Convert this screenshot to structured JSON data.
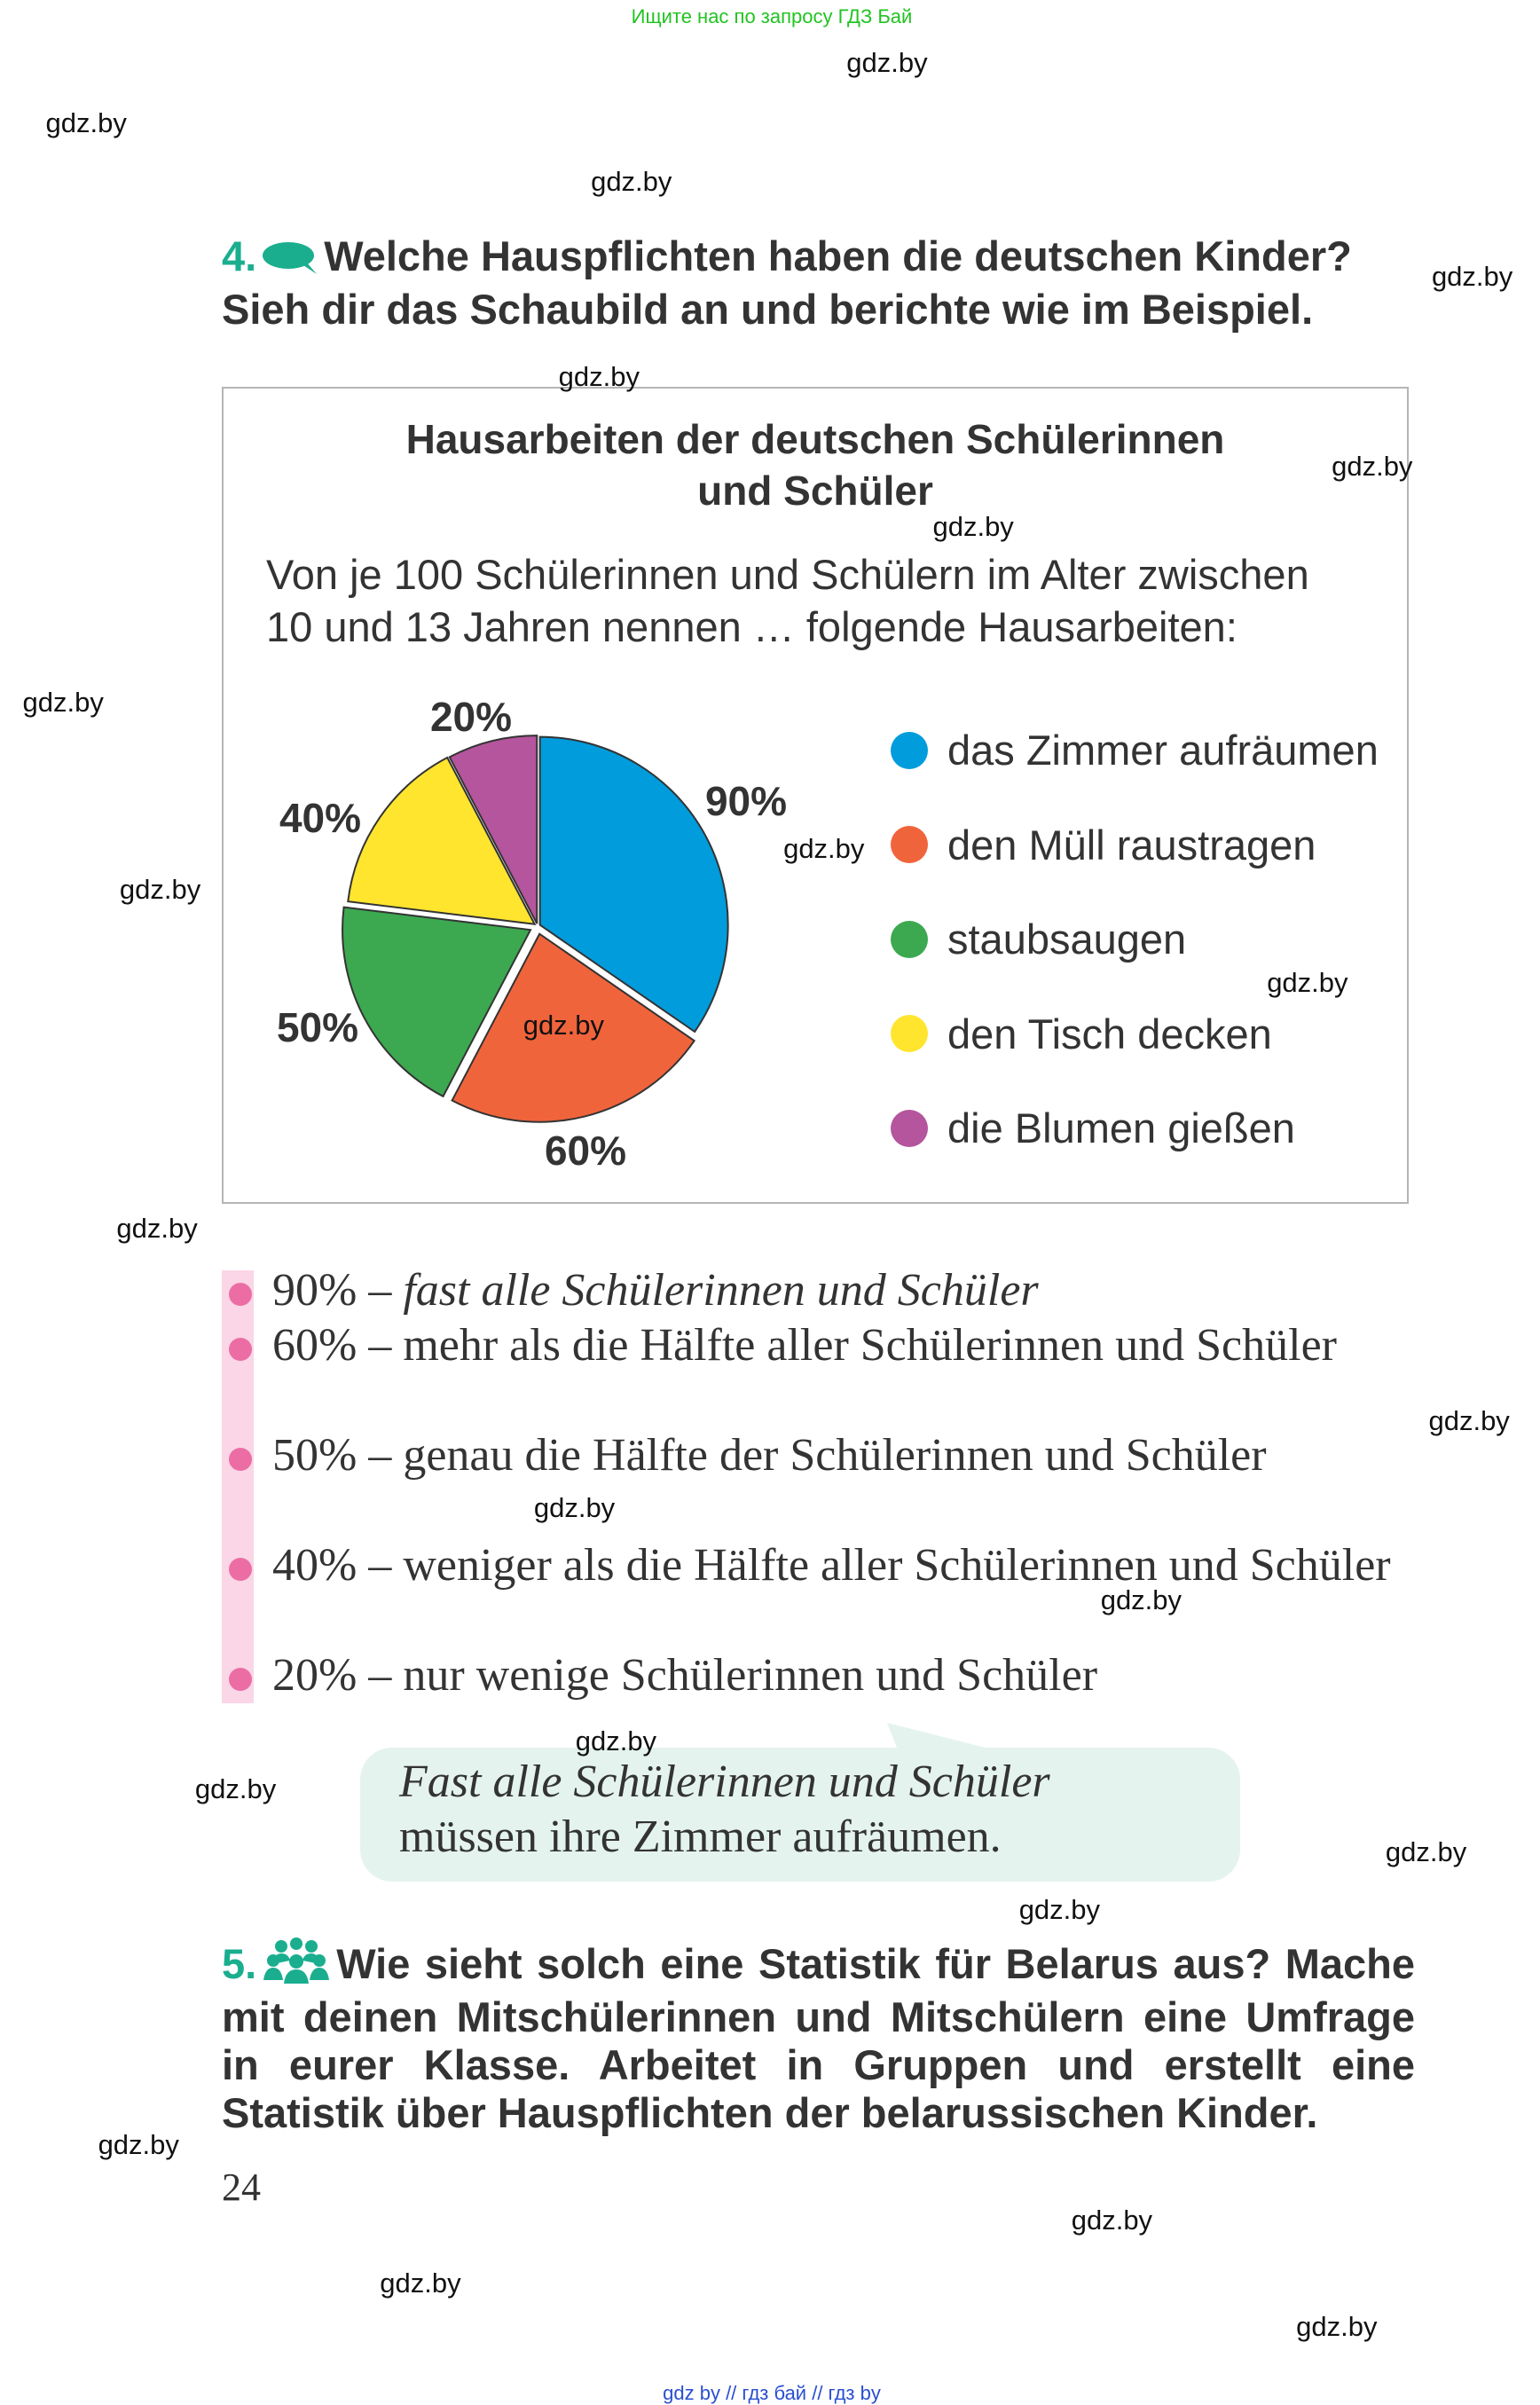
{
  "top_link": "Ищите нас по запросу ГДЗ Бай",
  "footer_link": "gdz by  //  гдз бай  //  гдз by",
  "watermark": "gdz.by",
  "colors": {
    "accent": "#1aae8f",
    "bullet": "#ec6da4",
    "bubble": "#e4f3ee"
  },
  "task4": {
    "number": "4.",
    "icon": "speech-bubble-icon",
    "line1": "Welche Hauspflichten haben die deutschen Kinder?",
    "line2": "Sieh dir das Schaubild an und berichte wie im Beispiel."
  },
  "chart_data": {
    "type": "pie",
    "title_line1": "Hausarbeiten der deutschen Schülerinnen",
    "title_line2": "und Schüler",
    "subtitle_line1": "Von je 100 Schülerinnen und Schülern im Alter zwischen",
    "subtitle_line2": "10 und 13 Jahren nennen … folgende Hausarbeiten:",
    "legend_position": "right",
    "slices": [
      {
        "label": "das Zimmer aufräumen",
        "value": 90,
        "display": "90%",
        "color": "#009cdc"
      },
      {
        "label": "den Müll raustragen",
        "value": 60,
        "display": "60%",
        "color": "#f0643c"
      },
      {
        "label": "staubsaugen",
        "value": 50,
        "display": "50%",
        "color": "#3ca950"
      },
      {
        "label": "den Tisch decken",
        "value": 40,
        "display": "40%",
        "color": "#ffe52e"
      },
      {
        "label": "die Blumen gießen",
        "value": 20,
        "display": "20%",
        "color": "#b4559d"
      }
    ]
  },
  "list": [
    {
      "pct": "90%",
      "text": " – ",
      "rest": "fast alle Schülerinnen und Schüler",
      "italic": true
    },
    {
      "pct": "60%",
      "text": " – ",
      "rest": "mehr als die Hälfte aller Schülerinnen und Schüler"
    },
    {
      "pct": "50%",
      "text": " – ",
      "rest": "genau die Hälfte der Schülerinnen und Schüler"
    },
    {
      "pct": "40%",
      "text": " – ",
      "rest": "weniger als die Hälfte aller Schülerinnen und Schüler"
    },
    {
      "pct": "20%",
      "text": " – ",
      "rest": "nur wenige Schülerinnen und Schüler"
    }
  ],
  "example": {
    "line1": "Fast alle Schülerinnen und Schüler",
    "line2": "müssen ihre Zimmer aufräumen."
  },
  "task5": {
    "number": "5.",
    "icon": "group-icon",
    "text": "Wie sieht solch eine Statistik für Belarus aus? Mache mit deinen Mitschülerinnen und Mitschülern eine Umfrage in eurer Klasse. Arbeitet in Gruppen und erstellt eine Statistik über Hauspflichten der belarussischen Kinder."
  },
  "page_number": "24"
}
